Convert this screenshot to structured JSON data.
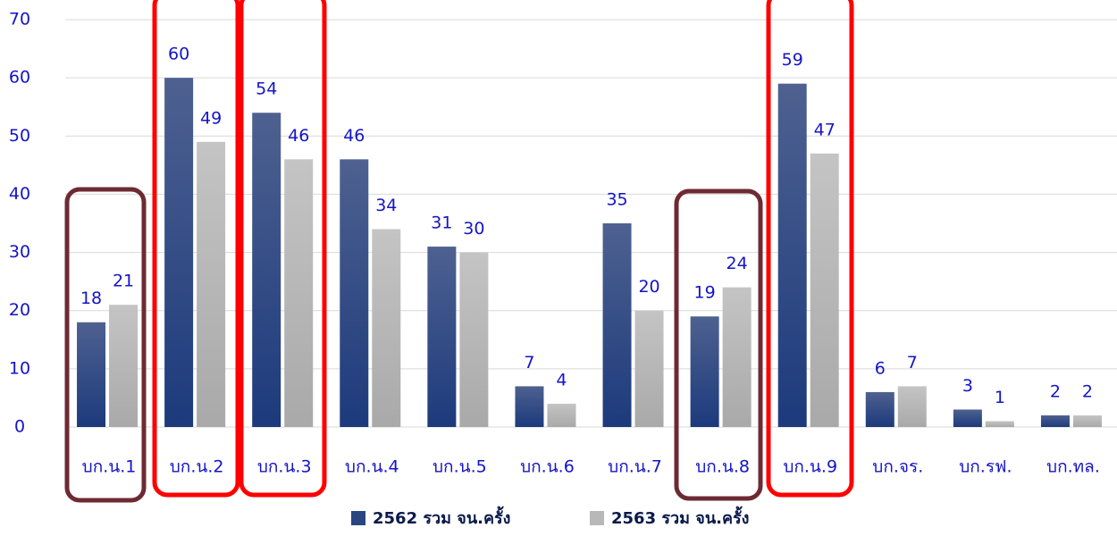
{
  "chart_data": {
    "type": "bar",
    "categories": [
      "บก.น.1",
      "บก.น.2",
      "บก.น.3",
      "บก.น.4",
      "บก.น.5",
      "บก.น.6",
      "บก.น.7",
      "บก.น.8",
      "บก.น.9",
      "บก.จร.",
      "บก.รฟ.",
      "บก.ทล."
    ],
    "series": [
      {
        "name": "2562 รวม จน.ครั้ง",
        "color": "#2a4680",
        "values": [
          18,
          60,
          54,
          46,
          31,
          7,
          35,
          19,
          59,
          6,
          3,
          2
        ]
      },
      {
        "name": "2563 รวม จน.ครั้ง",
        "color": "#b8b8b8",
        "values": [
          21,
          49,
          46,
          34,
          30,
          4,
          20,
          24,
          47,
          7,
          1,
          2
        ]
      }
    ],
    "ylim": [
      0,
      70
    ],
    "yticks": [
      0,
      10,
      20,
      30,
      40,
      50,
      60,
      70
    ],
    "grid": true
  }
}
